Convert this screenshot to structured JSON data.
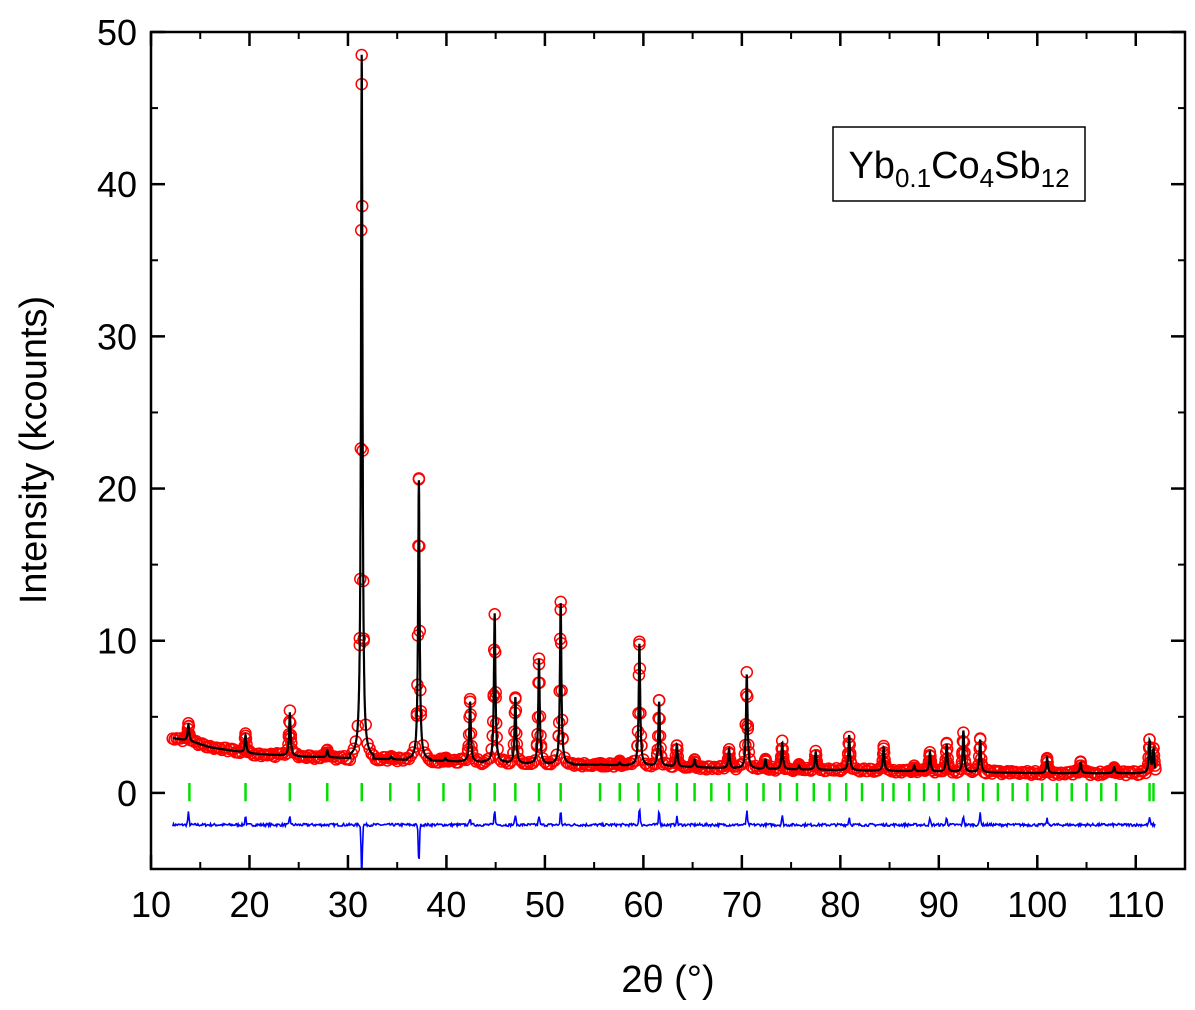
{
  "chart_data": {
    "type": "scatter",
    "title": "",
    "xlabel": "2θ (°)",
    "ylabel": "Intensity (kcounts)",
    "xlim": [
      10,
      115
    ],
    "ylim": [
      -5,
      50
    ],
    "x_ticks": [
      "10",
      "20",
      "30",
      "40",
      "50",
      "60",
      "70",
      "80",
      "90",
      "100",
      "110"
    ],
    "y_ticks": [
      "0",
      "10",
      "20",
      "30",
      "40",
      "50"
    ],
    "grid": false,
    "legend": {
      "placement": "top-right",
      "label_parts": [
        {
          "text": "Yb",
          "sub": false
        },
        {
          "text": "0.1",
          "sub": true
        },
        {
          "text": "Co",
          "sub": false
        },
        {
          "text": "4",
          "sub": true
        },
        {
          "text": "Sb",
          "sub": false
        },
        {
          "text": "12",
          "sub": true
        }
      ]
    },
    "colors": {
      "observed": "#ff0000",
      "calculated": "#000000",
      "bragg": "#00e000",
      "difference": "#0000ff"
    },
    "background": [
      [
        12.3,
        3.6
      ],
      [
        14,
        3.4
      ],
      [
        16,
        3.0
      ],
      [
        18,
        2.8
      ],
      [
        20,
        2.6
      ],
      [
        25,
        2.4
      ],
      [
        30,
        2.3
      ],
      [
        35,
        2.2
      ],
      [
        40,
        2.1
      ],
      [
        50,
        1.9
      ],
      [
        60,
        1.8
      ],
      [
        70,
        1.6
      ],
      [
        80,
        1.5
      ],
      [
        90,
        1.4
      ],
      [
        100,
        1.3
      ],
      [
        110,
        1.3
      ],
      [
        112,
        1.3
      ]
    ],
    "peaks": [
      {
        "x": 13.8,
        "y": 4.5
      },
      {
        "x": 19.6,
        "y": 3.8
      },
      {
        "x": 24.1,
        "y": 5.3
      },
      {
        "x": 27.9,
        "y": 2.8
      },
      {
        "x": 31.4,
        "y": 48.5
      },
      {
        "x": 34.4,
        "y": 2.4
      },
      {
        "x": 37.2,
        "y": 20.6
      },
      {
        "x": 39.9,
        "y": 2.3
      },
      {
        "x": 42.4,
        "y": 6.0
      },
      {
        "x": 44.9,
        "y": 11.8
      },
      {
        "x": 47.0,
        "y": 6.3
      },
      {
        "x": 49.4,
        "y": 8.8
      },
      {
        "x": 51.6,
        "y": 12.5
      },
      {
        "x": 55.7,
        "y": 1.9
      },
      {
        "x": 57.6,
        "y": 2.0
      },
      {
        "x": 59.6,
        "y": 9.8
      },
      {
        "x": 61.6,
        "y": 6.0
      },
      {
        "x": 63.4,
        "y": 3.2
      },
      {
        "x": 65.2,
        "y": 2.2
      },
      {
        "x": 68.7,
        "y": 2.9
      },
      {
        "x": 70.5,
        "y": 7.8
      },
      {
        "x": 72.4,
        "y": 2.2
      },
      {
        "x": 74.1,
        "y": 3.3
      },
      {
        "x": 75.8,
        "y": 1.8
      },
      {
        "x": 77.5,
        "y": 2.7
      },
      {
        "x": 80.9,
        "y": 3.8
      },
      {
        "x": 84.4,
        "y": 3.0
      },
      {
        "x": 87.5,
        "y": 1.8
      },
      {
        "x": 89.1,
        "y": 2.7
      },
      {
        "x": 90.8,
        "y": 3.2
      },
      {
        "x": 92.5,
        "y": 4.1
      },
      {
        "x": 94.2,
        "y": 3.5
      },
      {
        "x": 101.0,
        "y": 2.3
      },
      {
        "x": 104.4,
        "y": 2.0
      },
      {
        "x": 107.8,
        "y": 1.7
      },
      {
        "x": 111.4,
        "y": 3.4
      },
      {
        "x": 111.8,
        "y": 2.8
      }
    ],
    "bragg_positions": [
      13.9,
      19.6,
      24.1,
      27.9,
      31.4,
      34.3,
      37.2,
      39.7,
      42.4,
      44.9,
      47.0,
      49.4,
      51.6,
      55.6,
      57.6,
      59.5,
      61.6,
      63.4,
      65.2,
      66.9,
      68.7,
      70.5,
      72.2,
      73.9,
      75.6,
      77.3,
      78.9,
      80.6,
      82.2,
      84.3,
      85.4,
      87.0,
      88.5,
      90.0,
      91.5,
      93.0,
      94.5,
      96.0,
      97.5,
      99.0,
      100.5,
      102.0,
      103.5,
      105.0,
      106.5,
      108.0,
      111.4,
      111.8
    ],
    "difference_baseline": -2.1,
    "difference_features": [
      {
        "x": 13.8,
        "d": 0.8
      },
      {
        "x": 19.6,
        "d": 0.6
      },
      {
        "x": 24.1,
        "d": 0.6
      },
      {
        "x": 31.4,
        "d": -3.6
      },
      {
        "x": 37.2,
        "d": -2.7
      },
      {
        "x": 42.4,
        "d": 0.5
      },
      {
        "x": 44.9,
        "d": 1.0
      },
      {
        "x": 47.0,
        "d": 0.7
      },
      {
        "x": 49.4,
        "d": 0.6
      },
      {
        "x": 51.6,
        "d": 0.9
      },
      {
        "x": 59.6,
        "d": 1.2
      },
      {
        "x": 61.6,
        "d": 1.0
      },
      {
        "x": 63.4,
        "d": 0.5
      },
      {
        "x": 70.5,
        "d": 0.9
      },
      {
        "x": 74.1,
        "d": 0.6
      },
      {
        "x": 80.9,
        "d": 0.5
      },
      {
        "x": 89.1,
        "d": 0.4
      },
      {
        "x": 90.8,
        "d": 0.5
      },
      {
        "x": 92.5,
        "d": 0.6
      },
      {
        "x": 94.2,
        "d": 0.8
      },
      {
        "x": 101.0,
        "d": 0.4
      },
      {
        "x": 111.4,
        "d": 0.5
      }
    ]
  }
}
